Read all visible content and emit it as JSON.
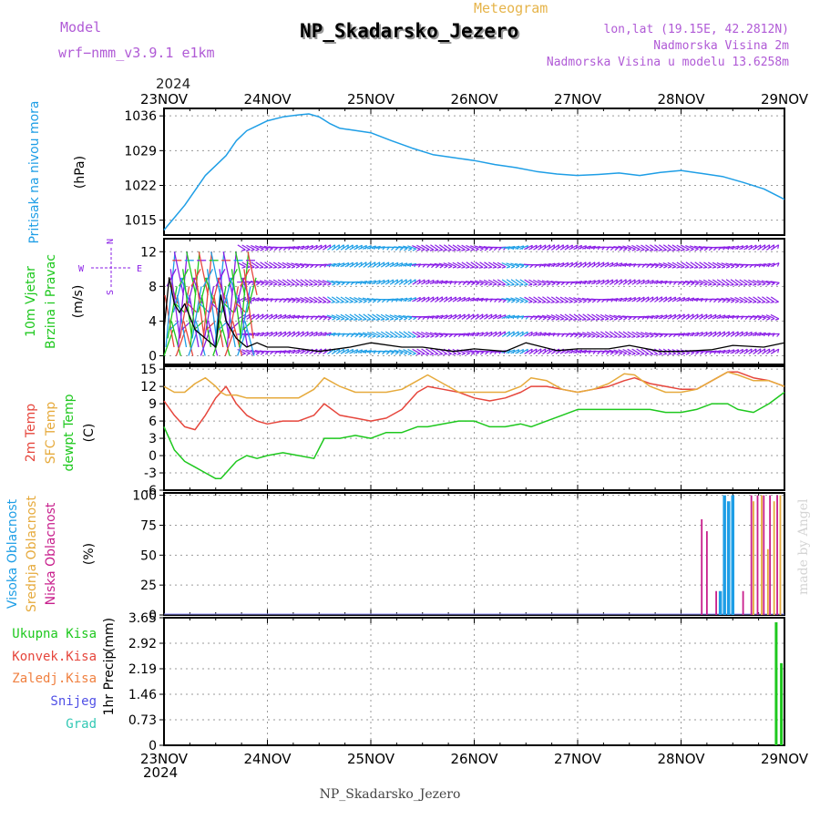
{
  "header": {
    "model_label": "Model",
    "model_name": "wrf−nmm_v3.9.1  e1km",
    "meteogram_label": "Meteogram",
    "station_title": "NP_Skadarsko_Jezero",
    "coords": "lon,lat (19.15E, 42.2812N)",
    "elevation": "Nadmorska Visina 2m",
    "model_elevation": "Nadmorska Visina u modelu 13.6258m",
    "footer_station": "NP_Skadarsko_Jezero",
    "watermark": "made by Angel"
  },
  "colors": {
    "pressure": "#1e9ee6",
    "temp2m": "#e6463c",
    "sfc_temp": "#e6aa3c",
    "dewpoint": "#1ec81e",
    "cloud_high": "#1e9ee6",
    "cloud_mid": "#e6aa3c",
    "cloud_low": "#c81e8c",
    "precip_total": "#1ec81e",
    "precip_conv": "#e6463c",
    "wind_main": "#8a1ee6"
  },
  "time_axis": {
    "year_top": "2024",
    "year_bottom": "2024",
    "labels": [
      "23NOV",
      "24NOV",
      "25NOV",
      "26NOV",
      "27NOV",
      "28NOV",
      "29NOV"
    ]
  },
  "chart_data": [
    {
      "type": "line",
      "panel": "pressure",
      "ylabel_main": "Pritisak na nivou mora",
      "unit": "(hPa)",
      "x_days": [
        0,
        0.08,
        0.2,
        0.3,
        0.4,
        0.5,
        0.6,
        0.7,
        0.8,
        0.9,
        1.0,
        1.15,
        1.3,
        1.4,
        1.5,
        1.6,
        1.7,
        1.8,
        2.0,
        2.2,
        2.4,
        2.6,
        2.8,
        3.0,
        3.2,
        3.4,
        3.6,
        3.8,
        4.0,
        4.2,
        4.4,
        4.6,
        4.8,
        5.0,
        5.2,
        5.4,
        5.6,
        5.8,
        6.0
      ],
      "values": [
        1013,
        1015,
        1018,
        1021,
        1024,
        1026,
        1028,
        1031,
        1033,
        1034,
        1035,
        1035.8,
        1036.2,
        1036.4,
        1035.8,
        1034.5,
        1033.5,
        1033.2,
        1032.6,
        1031,
        1029.5,
        1028.2,
        1027.6,
        1027,
        1026.2,
        1025.6,
        1024.8,
        1024.3,
        1024,
        1024.2,
        1024.5,
        1024,
        1024.6,
        1025,
        1024.4,
        1023.8,
        1022.6,
        1021.3,
        1019.2
      ],
      "yticks": [
        1015,
        1022,
        1029,
        1036
      ],
      "ylim": [
        1012,
        1037.5
      ]
    },
    {
      "type": "line",
      "panel": "wind",
      "ylabel_main": "10m Vjetar",
      "ylabel_sub": "Brzina i Pravac",
      "unit": "(m/s)",
      "compass": [
        "N",
        "S",
        "W",
        "E"
      ],
      "x_days": [
        0,
        0.05,
        0.1,
        0.15,
        0.2,
        0.3,
        0.4,
        0.5,
        0.55,
        0.6,
        0.7,
        0.8,
        0.9,
        1.0,
        1.2,
        1.5,
        1.8,
        2.0,
        2.3,
        2.5,
        2.8,
        3.0,
        3.3,
        3.5,
        3.8,
        4.0,
        4.3,
        4.5,
        4.8,
        5.0,
        5.3,
        5.5,
        5.8,
        6.0
      ],
      "values": [
        3,
        9,
        6,
        5,
        6,
        3,
        2,
        1,
        7,
        4,
        2,
        1,
        1.5,
        1,
        1,
        0.5,
        1,
        1.5,
        1,
        1,
        0.5,
        0.8,
        0.5,
        1.5,
        0.6,
        0.8,
        0.8,
        1.2,
        0.5,
        0.5,
        0.7,
        1.2,
        1,
        1.5
      ],
      "yticks": [
        0,
        4,
        8,
        12
      ],
      "ylim": [
        -1,
        13.5
      ]
    },
    {
      "type": "line",
      "panel": "temperature",
      "ylabel_main": "2m Temp",
      "ylabel_mid": "SFC Temp",
      "ylabel_sub": "dewpt Temp",
      "unit": "(C)",
      "x_days": [
        0,
        0.1,
        0.2,
        0.3,
        0.4,
        0.5,
        0.55,
        0.6,
        0.7,
        0.8,
        0.9,
        1.0,
        1.15,
        1.3,
        1.45,
        1.55,
        1.7,
        1.85,
        2.0,
        2.15,
        2.3,
        2.45,
        2.55,
        2.7,
        2.85,
        3.0,
        3.15,
        3.3,
        3.45,
        3.55,
        3.7,
        3.85,
        4.0,
        4.15,
        4.3,
        4.45,
        4.55,
        4.7,
        4.85,
        5.0,
        5.15,
        5.3,
        5.45,
        5.55,
        5.7,
        5.85,
        6.0
      ],
      "series": [
        {
          "name": "2m Temp",
          "color": "#e6463c",
          "values": [
            9.5,
            7,
            5,
            4.5,
            7,
            10,
            11,
            12,
            9,
            7,
            6,
            5.5,
            6,
            6,
            7,
            9,
            7,
            6.5,
            6,
            6.5,
            8,
            11,
            12,
            11.5,
            11,
            10,
            9.5,
            10,
            11,
            12,
            12,
            11.5,
            11,
            11.5,
            12,
            13,
            13.5,
            12.5,
            12,
            11.5,
            11.5,
            13,
            14.5,
            14.5,
            13.5,
            13,
            12
          ]
        },
        {
          "name": "SFC Temp",
          "color": "#e6aa3c",
          "values": [
            12,
            11,
            11,
            12.5,
            13.5,
            12,
            11,
            10.5,
            10.5,
            10,
            10,
            10,
            10,
            10,
            11.5,
            13.5,
            12,
            11,
            11,
            11,
            11.5,
            13,
            14,
            12.5,
            11,
            11,
            11,
            11,
            12,
            13.5,
            13,
            11.5,
            11,
            11.5,
            12.5,
            14.2,
            14,
            12,
            11,
            11,
            11.5,
            13,
            14.5,
            14,
            13,
            13,
            12
          ]
        },
        {
          "name": "dewpt Temp",
          "color": "#1ec81e",
          "values": [
            5,
            1,
            -1,
            -2,
            -3,
            -4,
            -4,
            -3,
            -1,
            0,
            -0.5,
            0,
            0.5,
            0,
            -0.5,
            3,
            3,
            3.5,
            3,
            4,
            4,
            5,
            5,
            5.5,
            6,
            6,
            5,
            5,
            5.5,
            5,
            6,
            7,
            8,
            8,
            8,
            8,
            8,
            8,
            7.5,
            7.5,
            8,
            9,
            9,
            8,
            7.5,
            9,
            11
          ]
        }
      ],
      "yticks": [
        -6,
        -3,
        0,
        3,
        6,
        9,
        12,
        15
      ],
      "ylim": [
        -6,
        15.5
      ]
    },
    {
      "type": "bar",
      "panel": "cloud",
      "ylabel_main": "Visoka Oblacnost",
      "ylabel_mid": "Srednja Oblacnost",
      "ylabel_sub": "Niska Oblacnost",
      "unit": "(%)",
      "series": [
        {
          "name": "Visoka Oblacnost",
          "color": "#1e9ee6",
          "x_days": [
            5.38,
            5.42,
            5.46,
            5.5
          ],
          "values": [
            20,
            100,
            95,
            100
          ]
        },
        {
          "name": "Srednja Oblacnost",
          "color": "#e6aa3c",
          "x_days": [
            5.7,
            5.78,
            5.84,
            5.9,
            5.96
          ],
          "values": [
            95,
            100,
            55,
            95,
            100
          ]
        },
        {
          "name": "Niska Oblacnost",
          "color": "#c81e8c",
          "x_days": [
            5.2,
            5.25,
            5.34,
            5.6,
            5.68,
            5.74,
            5.8,
            5.86,
            5.93
          ],
          "values": [
            80,
            70,
            20,
            20,
            100,
            100,
            100,
            100,
            100
          ]
        }
      ],
      "yticks": [
        0,
        25,
        50,
        75,
        100
      ],
      "ylim": [
        0,
        102
      ]
    },
    {
      "type": "bar",
      "panel": "precip",
      "legend": [
        "Ukupna Kisa",
        "Konvek.Kisa",
        "Zaledj.Kisa",
        "Snijeg",
        "Grad"
      ],
      "ylabel_main": "1hr Precip",
      "unit": "(mm)",
      "series": [
        {
          "name": "Ukupna Kisa",
          "color": "#1ec81e",
          "x_days": [
            5.92,
            5.97
          ],
          "values": [
            3.52,
            2.35
          ]
        }
      ],
      "yticks": [
        0,
        0.73,
        1.46,
        2.19,
        2.92,
        3.65
      ],
      "ylim": [
        0,
        3.65
      ]
    }
  ]
}
